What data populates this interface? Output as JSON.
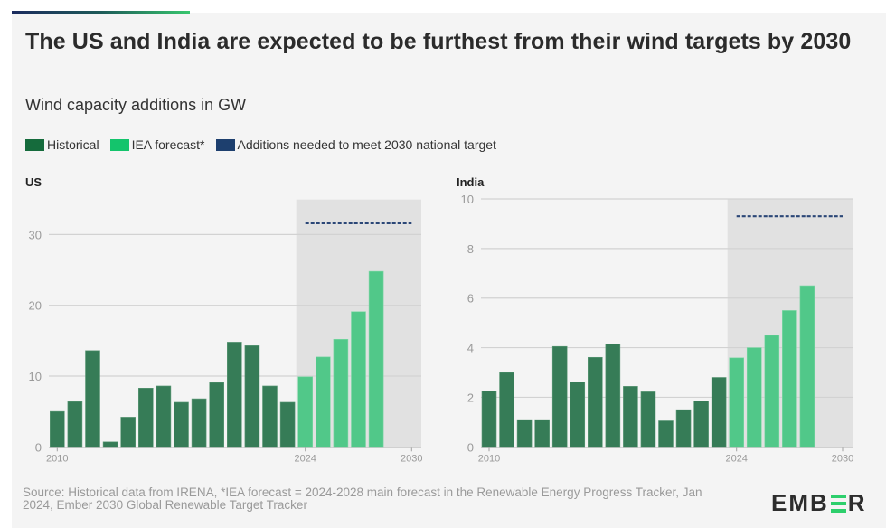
{
  "header": {
    "title": "The US and India are expected to be furthest from their wind targets by 2030",
    "subtitle": "Wind capacity additions in GW"
  },
  "legend": [
    {
      "label": "Historical",
      "color": "#156b3c"
    },
    {
      "label": "IEA forecast*",
      "color": "#14c46c"
    },
    {
      "label": "Additions needed to meet 2030 national target",
      "color": "#1d3f6e"
    }
  ],
  "colors": {
    "historical_bar": "#367c57",
    "forecast_bar": "#51c889",
    "target_line": "#2b4777",
    "forecast_shade": "#e1e1e1",
    "grid": "#d2d2d2"
  },
  "chart_data": [
    {
      "type": "bar",
      "title": "US",
      "xlabel": "",
      "ylabel": "GW",
      "ylim": [
        0,
        35
      ],
      "yticks": [
        0,
        10,
        20,
        30
      ],
      "xlim": [
        2010,
        2030
      ],
      "xticks": [
        "2010",
        "2024",
        "2030"
      ],
      "forecast_shaded_range": [
        2024,
        2030
      ],
      "series": [
        {
          "name": "Historical",
          "x": [
            2010,
            2011,
            2012,
            2013,
            2014,
            2015,
            2016,
            2017,
            2018,
            2019,
            2020,
            2021,
            2022,
            2023
          ],
          "values": [
            5.0,
            6.4,
            13.6,
            0.7,
            4.2,
            8.3,
            8.6,
            6.3,
            6.8,
            9.1,
            14.8,
            14.3,
            8.6,
            6.3
          ]
        },
        {
          "name": "IEA forecast*",
          "x": [
            2024,
            2025,
            2026,
            2027,
            2028
          ],
          "values": [
            9.9,
            12.7,
            15.2,
            19.1,
            24.8
          ]
        },
        {
          "name": "Additions needed to meet 2030 national target",
          "x_range": [
            2024,
            2030
          ],
          "value": 31.6
        }
      ]
    },
    {
      "type": "bar",
      "title": "India",
      "xlabel": "",
      "ylabel": "GW",
      "ylim": [
        0,
        10
      ],
      "yticks": [
        0,
        2,
        4,
        6,
        8,
        10
      ],
      "xlim": [
        2010,
        2030
      ],
      "xticks": [
        "2010",
        "2024",
        "2030"
      ],
      "forecast_shaded_range": [
        2024,
        2030
      ],
      "series": [
        {
          "name": "Historical",
          "x": [
            2010,
            2011,
            2012,
            2013,
            2014,
            2015,
            2016,
            2017,
            2018,
            2019,
            2020,
            2021,
            2022,
            2023
          ],
          "values": [
            2.25,
            3.0,
            1.1,
            1.1,
            4.05,
            2.62,
            3.61,
            4.15,
            2.44,
            2.22,
            1.05,
            1.5,
            1.85,
            2.8
          ]
        },
        {
          "name": "IEA forecast*",
          "x": [
            2024,
            2025,
            2026,
            2027,
            2028
          ],
          "values": [
            3.59,
            4.0,
            4.5,
            5.5,
            6.5
          ]
        },
        {
          "name": "Additions needed to meet 2030 national target",
          "x_range": [
            2024,
            2030
          ],
          "value": 9.3
        }
      ]
    }
  ],
  "footer": {
    "source": "Source: Historical data from IRENA, *IEA forecast = 2024-2028 main forecast in the Renewable Energy Progress Tracker, Jan 2024, Ember 2030 Global Renewable Target Tracker",
    "logo_prefix": "EMB",
    "logo_suffix": "R"
  }
}
